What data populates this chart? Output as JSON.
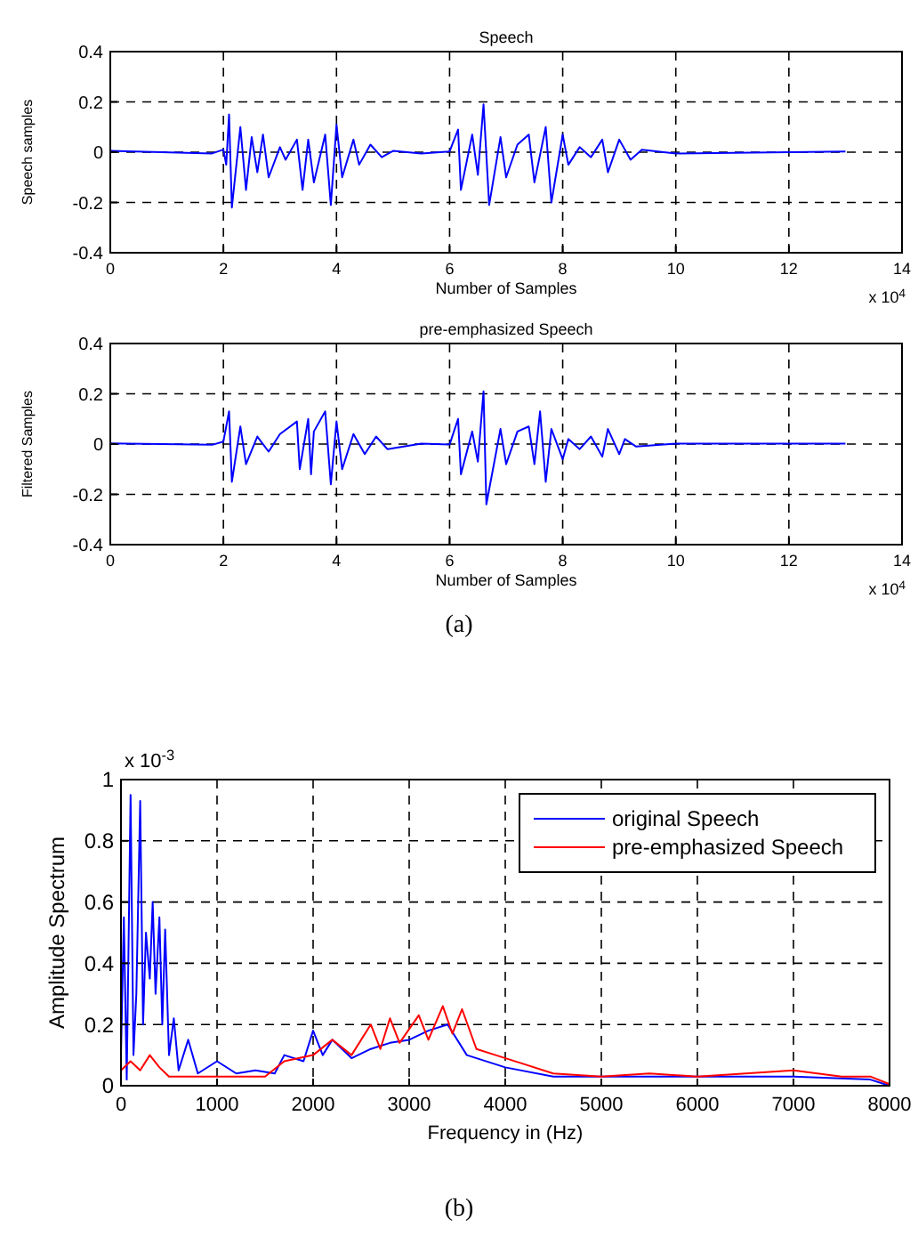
{
  "chart_data": [
    {
      "type": "line",
      "title": "Speech",
      "xlabel": "Number of Samples",
      "ylabel": "Speech samples",
      "xlim": [
        0,
        14
      ],
      "xticks": [
        0,
        2,
        4,
        6,
        8,
        10,
        12,
        14
      ],
      "ylim": [
        -0.4,
        0.4
      ],
      "yticks": [
        -0.4,
        -0.2,
        0,
        0.2,
        0.4
      ],
      "grid": true,
      "annotations": [
        "x 10$^{4}$"
      ],
      "series": [
        {
          "color": "#0000ff",
          "x": [
            0,
            1.8,
            2.0,
            2.05,
            2.1,
            2.15,
            2.3,
            2.4,
            2.5,
            2.6,
            2.7,
            2.8,
            3.0,
            3.1,
            3.3,
            3.4,
            3.5,
            3.6,
            3.8,
            3.9,
            4.0,
            4.1,
            4.3,
            4.4,
            4.6,
            4.8,
            5.0,
            5.5,
            6.0,
            6.15,
            6.2,
            6.4,
            6.5,
            6.6,
            6.7,
            6.9,
            7.0,
            7.2,
            7.4,
            7.5,
            7.7,
            7.8,
            8.0,
            8.1,
            8.3,
            8.5,
            8.7,
            8.8,
            9.0,
            9.2,
            9.4,
            10,
            13
          ],
          "values": [
            0.005,
            -0.005,
            0.01,
            -0.05,
            0.15,
            -0.22,
            0.1,
            -0.15,
            0.06,
            -0.08,
            0.07,
            -0.1,
            0.02,
            -0.03,
            0.05,
            -0.15,
            0.05,
            -0.12,
            0.07,
            -0.21,
            0.11,
            -0.1,
            0.05,
            -0.05,
            0.03,
            -0.02,
            0.005,
            -0.005,
            0.003,
            0.09,
            -0.15,
            0.07,
            -0.09,
            0.19,
            -0.21,
            0.06,
            -0.1,
            0.03,
            0.07,
            -0.12,
            0.1,
            -0.2,
            0.07,
            -0.05,
            0.02,
            -0.02,
            0.05,
            -0.08,
            0.05,
            -0.03,
            0.01,
            -0.005,
            0.003
          ]
        }
      ]
    },
    {
      "type": "line",
      "title": "pre-emphasized Speech",
      "xlabel": "Number of Samples",
      "ylabel": "Filtered Samples",
      "xlim": [
        0,
        14
      ],
      "xticks": [
        0,
        2,
        4,
        6,
        8,
        10,
        12,
        14
      ],
      "ylim": [
        -0.4,
        0.4
      ],
      "yticks": [
        -0.4,
        -0.2,
        0,
        0.2,
        0.4
      ],
      "grid": true,
      "annotations": [
        "x 10$^{4}$",
        "(a)"
      ],
      "series": [
        {
          "color": "#0000ff",
          "x": [
            0,
            1.8,
            2.0,
            2.1,
            2.15,
            2.3,
            2.4,
            2.6,
            2.8,
            3.0,
            3.3,
            3.35,
            3.5,
            3.55,
            3.6,
            3.8,
            3.9,
            4.0,
            4.1,
            4.3,
            4.5,
            4.7,
            4.9,
            5.5,
            6.0,
            6.15,
            6.2,
            6.4,
            6.5,
            6.6,
            6.65,
            6.9,
            7.0,
            7.2,
            7.4,
            7.5,
            7.6,
            7.7,
            7.8,
            8.0,
            8.1,
            8.3,
            8.5,
            8.7,
            8.8,
            9.0,
            9.1,
            9.3,
            10,
            13
          ],
          "values": [
            0.003,
            -0.003,
            0.01,
            0.13,
            -0.15,
            0.07,
            -0.08,
            0.03,
            -0.03,
            0.04,
            0.09,
            -0.1,
            0.1,
            -0.12,
            0.05,
            0.13,
            -0.16,
            0.09,
            -0.1,
            0.04,
            -0.04,
            0.03,
            -0.02,
            0.002,
            -0.002,
            0.1,
            -0.12,
            0.05,
            -0.07,
            0.21,
            -0.24,
            0.06,
            -0.08,
            0.05,
            0.07,
            -0.08,
            0.13,
            -0.15,
            0.06,
            -0.06,
            0.02,
            -0.02,
            0.03,
            -0.05,
            0.06,
            -0.04,
            0.02,
            -0.01,
            0.002,
            0.002
          ]
        }
      ]
    },
    {
      "type": "line",
      "xlabel": "Frequency in (Hz)",
      "ylabel": "Amplitude Spectrum",
      "xlim": [
        0,
        8000
      ],
      "xticks": [
        0,
        1000,
        2000,
        3000,
        4000,
        5000,
        6000,
        7000,
        8000
      ],
      "ylim": [
        0,
        1
      ],
      "yticks": [
        0,
        0.2,
        0.4,
        0.6,
        0.8,
        1
      ],
      "grid": true,
      "legend": "top right",
      "annotations": [
        "x 10$^{-3}$",
        "(b)"
      ],
      "series": [
        {
          "name": "original Speech",
          "color": "#0000ff",
          "x": [
            0,
            30,
            60,
            100,
            130,
            160,
            200,
            230,
            260,
            300,
            330,
            360,
            400,
            430,
            460,
            500,
            550,
            600,
            700,
            800,
            1000,
            1200,
            1400,
            1600,
            1700,
            1900,
            2000,
            2100,
            2200,
            2400,
            2600,
            2800,
            3000,
            3200,
            3400,
            3600,
            4000,
            4500,
            5000,
            6000,
            7000,
            7800,
            8000
          ],
          "values": [
            0.1,
            0.55,
            0.02,
            0.95,
            0.1,
            0.3,
            0.93,
            0.2,
            0.5,
            0.35,
            0.6,
            0.3,
            0.55,
            0.2,
            0.51,
            0.1,
            0.22,
            0.05,
            0.15,
            0.04,
            0.08,
            0.04,
            0.05,
            0.04,
            0.1,
            0.08,
            0.18,
            0.1,
            0.15,
            0.09,
            0.12,
            0.14,
            0.15,
            0.18,
            0.2,
            0.1,
            0.06,
            0.03,
            0.03,
            0.03,
            0.03,
            0.02,
            0
          ]
        },
        {
          "name": "pre-emphasized Speech",
          "color": "#ff0000",
          "x": [
            0,
            100,
            200,
            300,
            400,
            500,
            1000,
            1500,
            1700,
            2000,
            2200,
            2400,
            2600,
            2700,
            2800,
            2900,
            3100,
            3200,
            3350,
            3450,
            3550,
            3700,
            3900,
            4200,
            4500,
            5000,
            5500,
            6000,
            6500,
            7000,
            7500,
            7800,
            8000
          ],
          "values": [
            0.05,
            0.08,
            0.05,
            0.1,
            0.06,
            0.03,
            0.03,
            0.03,
            0.08,
            0.1,
            0.15,
            0.1,
            0.2,
            0.12,
            0.22,
            0.14,
            0.23,
            0.15,
            0.26,
            0.17,
            0.25,
            0.12,
            0.1,
            0.07,
            0.04,
            0.03,
            0.04,
            0.03,
            0.04,
            0.05,
            0.03,
            0.03,
            0.005
          ]
        }
      ]
    }
  ]
}
